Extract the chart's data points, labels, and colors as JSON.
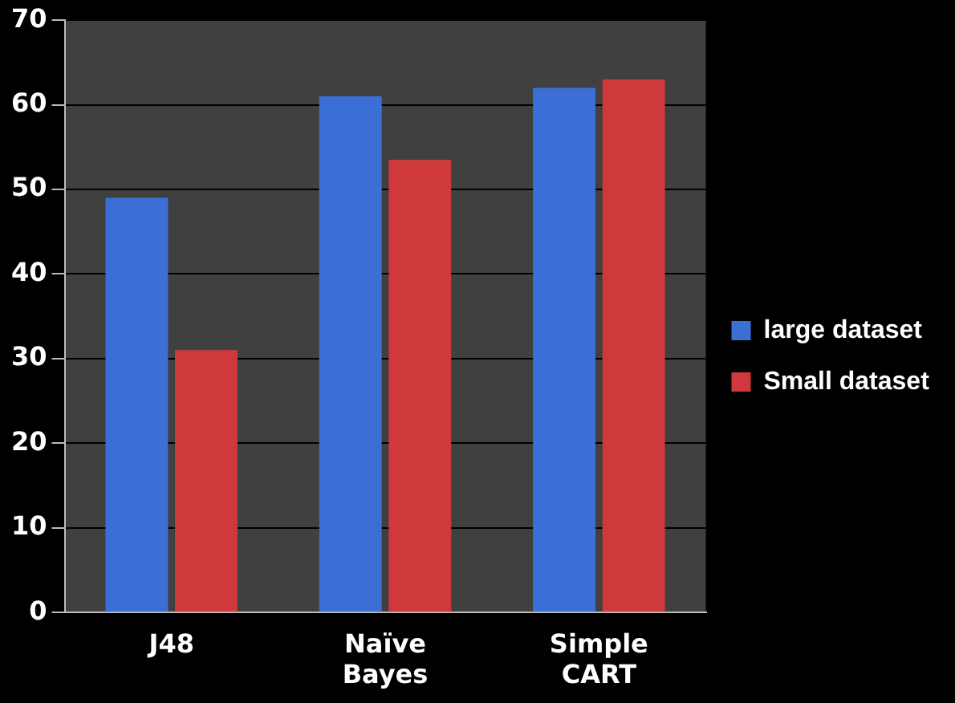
{
  "chart_data": {
    "type": "bar",
    "categories": [
      "J48",
      "Naïve Bayes",
      "Simple CART"
    ],
    "series": [
      {
        "name": "large dataset",
        "color": "#3b6fd6",
        "values": [
          49,
          61,
          62
        ]
      },
      {
        "name": "Small dataset",
        "color": "#d0393b",
        "values": [
          31,
          53.5,
          63
        ]
      }
    ],
    "ylim": [
      0,
      70
    ],
    "yticks": [
      0,
      10,
      20,
      30,
      40,
      50,
      60,
      70
    ],
    "grid": "y",
    "legend": "right"
  }
}
